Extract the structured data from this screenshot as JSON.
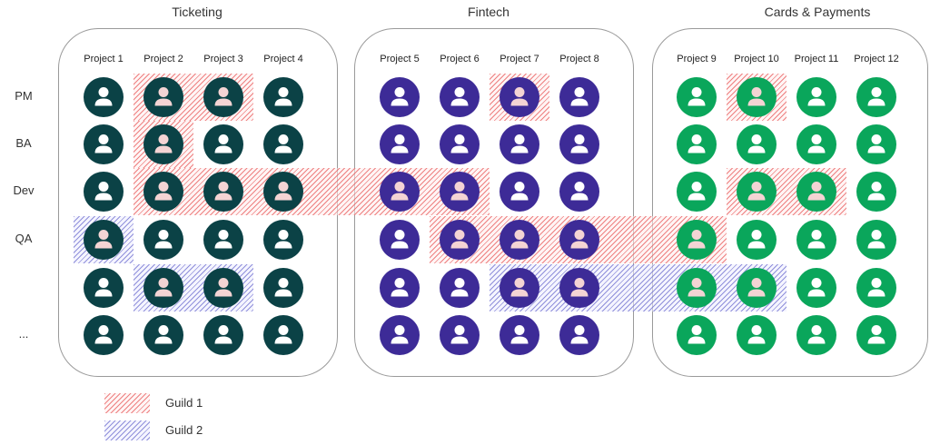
{
  "groups": [
    {
      "title": "Ticketing",
      "color": "#0b4246",
      "projects": [
        "Project 1",
        "Project 2",
        "Project 3",
        "Project 4"
      ]
    },
    {
      "title": "Fintech",
      "color": "#3d2b97",
      "projects": [
        "Project 5",
        "Project 6",
        "Project 7",
        "Project 8"
      ]
    },
    {
      "title": "Cards & Payments",
      "color": "#0aa65b",
      "projects": [
        "Project 9",
        "Project 10",
        "Project 11",
        "Project 12"
      ]
    }
  ],
  "roles": [
    "PM",
    "BA",
    "Dev",
    "QA",
    "",
    "..."
  ],
  "avatar_icon": "person-icon",
  "guilds": [
    {
      "name": "Guild 1",
      "color": "#e85a5a",
      "members": [
        {
          "role": "PM",
          "projects": [
            "Project 2",
            "Project 3",
            "Project 7",
            "Project 10"
          ]
        },
        {
          "role": "BA",
          "projects": [
            "Project 2"
          ]
        },
        {
          "role": "Dev",
          "projects": [
            "Project 2",
            "Project 3",
            "Project 4",
            "Project 5",
            "Project 6",
            "Project 10",
            "Project 11"
          ]
        },
        {
          "role": "QA",
          "projects": [
            "Project 6",
            "Project 7",
            "Project 8",
            "Project 9"
          ]
        }
      ]
    },
    {
      "name": "Guild 2",
      "color": "#6e6ecd",
      "members": [
        {
          "role": "QA",
          "projects": [
            "Project 1"
          ]
        },
        {
          "role": "",
          "projects": [
            "Project 2",
            "Project 3",
            "Project 7",
            "Project 8",
            "Project 9",
            "Project 10"
          ]
        }
      ]
    }
  ],
  "legend": [
    {
      "label": "Guild 1",
      "pattern": "red-hatch"
    },
    {
      "label": "Guild 2",
      "pattern": "blue-hatch"
    }
  ]
}
